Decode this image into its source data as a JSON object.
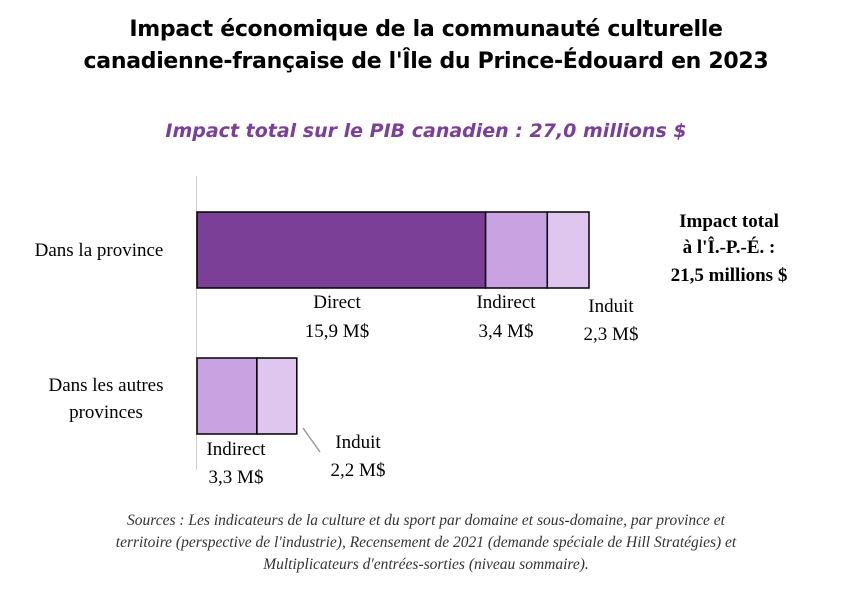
{
  "title_line1": "Impact économique de la communauté culturelle",
  "title_line2": "canadienne-française de l'Île du Prince-Édouard en 2023",
  "subtitle": "Impact total sur le PIB canadien : 27,0 millions $",
  "colors": {
    "direct": "#7b3f98",
    "indirect": "#c8a2e1",
    "induit": "#dfc6ee",
    "accent": "#7b3f98"
  },
  "chart_data": {
    "type": "bar",
    "orientation": "horizontal",
    "stacked": true,
    "categories": [
      "Dans la province",
      "Dans les autres provinces"
    ],
    "category_lines": [
      [
        "Dans la province"
      ],
      [
        "Dans les autres",
        "provinces"
      ]
    ],
    "series": [
      {
        "name": "Direct",
        "values": [
          15.9,
          0
        ]
      },
      {
        "name": "Indirect",
        "values": [
          3.4,
          3.3
        ]
      },
      {
        "name": "Induit",
        "values": [
          2.3,
          2.2
        ]
      }
    ],
    "data_labels": [
      [
        {
          "name": "Direct",
          "value": "15,9 M$"
        },
        {
          "name": "Indirect",
          "value": "3,4 M$"
        },
        {
          "name": "Induit",
          "value": "2,3 M$"
        }
      ],
      [
        {
          "name": "Indirect",
          "value": "3,3 M$"
        },
        {
          "name": "Induit",
          "value": "2,2 M$"
        }
      ]
    ],
    "total_annotation": [
      "Impact total",
      "à l'Î.-P.-É. :",
      "21,5 millions $"
    ]
  },
  "source_note": [
    "Sources : Les indicateurs de la culture et du sport par domaine et sous-domaine, par province et",
    "territoire (perspective de l'industrie), Recensement de 2021 (demande spéciale de Hill Stratégies) et",
    "Multiplicateurs d'entrées-sorties (niveau sommaire)."
  ]
}
